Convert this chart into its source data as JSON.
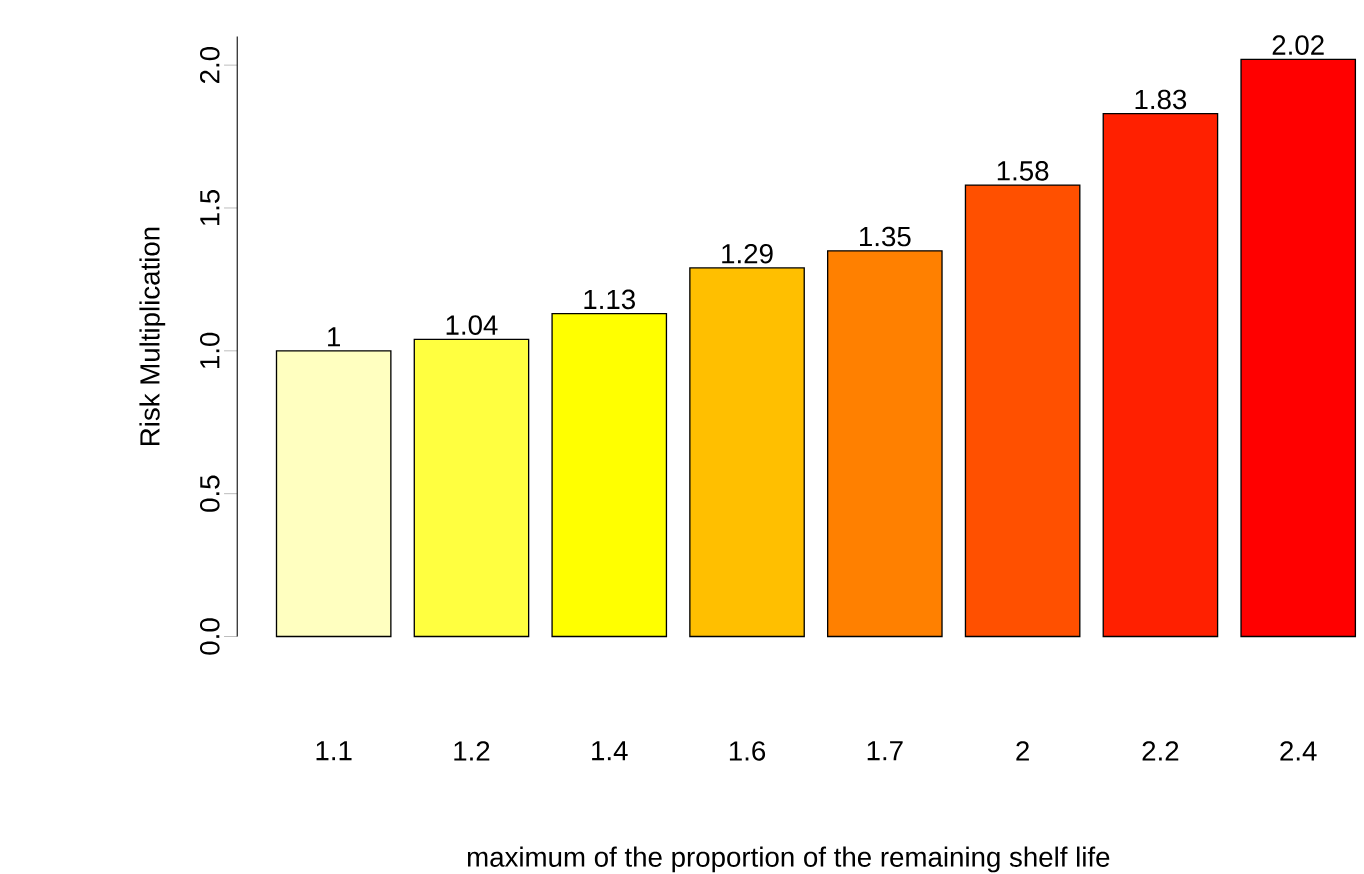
{
  "chart_data": {
    "type": "bar",
    "xlabel": "maximum of the proportion of the remaining shelf life",
    "ylabel": "Risk Multiplication",
    "categories": [
      "1.1",
      "1.2",
      "1.4",
      "1.6",
      "1.7",
      "2",
      "2.2",
      "2.4"
    ],
    "values": [
      1,
      1.04,
      1.13,
      1.29,
      1.35,
      1.58,
      1.83,
      2.02
    ],
    "colors": [
      "#ffffc0",
      "#ffff40",
      "#ffff00",
      "#ffbf00",
      "#ff8000",
      "#ff5000",
      "#ff2000",
      "#ff0000"
    ],
    "ylim": [
      0,
      2.1
    ],
    "yticks": [
      {
        "value": 0,
        "label": "0.0"
      },
      {
        "value": 0.5,
        "label": "0.5"
      },
      {
        "value": 1,
        "label": "1.0"
      },
      {
        "value": 1.5,
        "label": "1.5"
      },
      {
        "value": 2,
        "label": "2.0"
      }
    ],
    "data_labels": true,
    "grid": false
  }
}
